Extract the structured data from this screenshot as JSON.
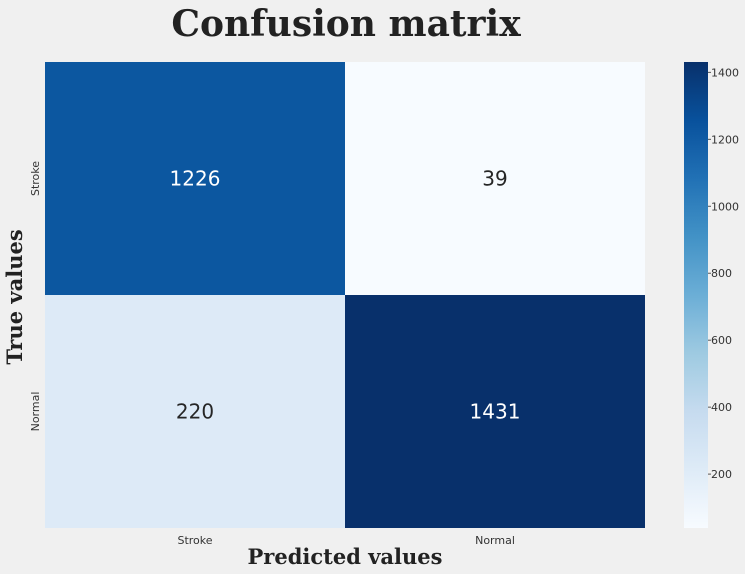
{
  "chart_data": {
    "type": "heatmap",
    "title": "Confusion matrix",
    "xlabel": "Predicted values",
    "ylabel": "True values",
    "x_categories": [
      "Stroke",
      "Normal"
    ],
    "y_categories": [
      "Stroke",
      "Normal"
    ],
    "values": [
      [
        1226,
        39
      ],
      [
        220,
        1431
      ]
    ],
    "colormap": "Blues",
    "colorbar": {
      "range": [
        39,
        1431
      ],
      "ticks": [
        200,
        400,
        600,
        800,
        1000,
        1200,
        1400
      ]
    },
    "grid": false
  },
  "colors": {
    "background": "#f0f0f0",
    "cell_text_dark_bg": "#ffffff",
    "cell_text_light_bg": "#262626"
  }
}
